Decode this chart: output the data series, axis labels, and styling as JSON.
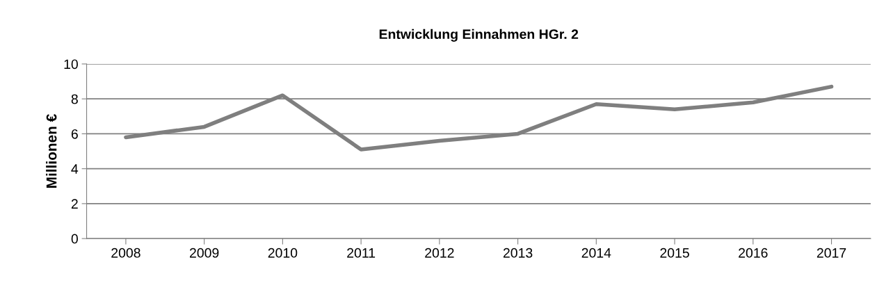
{
  "chart_data": {
    "type": "line",
    "title": "Entwicklung Einnahmen HGr. 2",
    "ylabel": "Millionen €",
    "categories": [
      "2008",
      "2009",
      "2010",
      "2011",
      "2012",
      "2013",
      "2014",
      "2015",
      "2016",
      "2017"
    ],
    "series": [
      {
        "color": "#7f7f7f",
        "values": [
          5.8,
          6.4,
          8.2,
          5.1,
          5.6,
          6.0,
          7.7,
          7.4,
          7.8,
          8.7
        ]
      }
    ],
    "ylim": [
      0,
      10
    ],
    "yticks": [
      0,
      2,
      4,
      6,
      8,
      10
    ],
    "grid": "y",
    "legend": false,
    "marker": "none",
    "line_style": "solid"
  }
}
